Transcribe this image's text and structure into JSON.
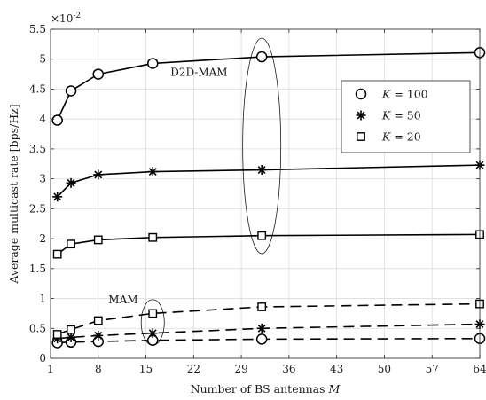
{
  "chart_data": {
    "type": "line",
    "title": "",
    "xlabel": "Number of BS antennas",
    "xlabel_symbol": "M",
    "ylabel": "Average multicast rate [bps/Hz]",
    "y_multiplier": "×10",
    "y_multiplier_exponent": "-2",
    "xlim": [
      1,
      64
    ],
    "ylim": [
      0,
      5.5
    ],
    "x_ticks": [
      1,
      8,
      15,
      22,
      29,
      36,
      43,
      50,
      57,
      64
    ],
    "y_ticks": [
      0,
      0.5,
      1,
      1.5,
      2,
      2.5,
      3,
      3.5,
      4,
      4.5,
      5,
      5.5
    ],
    "y_tick_labels": [
      "0",
      "0.5",
      "1",
      "1.5",
      "2",
      "2.5",
      "3",
      "3.5",
      "4",
      "4.5",
      "5",
      "5.5"
    ],
    "grid": true,
    "legend_position": "top-right",
    "x": [
      2,
      4,
      8,
      16,
      32,
      64
    ],
    "series": [
      {
        "name": "K = 100",
        "group": "D2D-MAM",
        "marker": "circle",
        "line": "solid",
        "values": [
          3.98,
          4.47,
          4.75,
          4.93,
          5.04,
          5.11
        ]
      },
      {
        "name": "K = 50",
        "group": "D2D-MAM",
        "marker": "asterisk",
        "line": "solid",
        "values": [
          2.7,
          2.93,
          3.07,
          3.12,
          3.15,
          3.23
        ]
      },
      {
        "name": "K = 20",
        "group": "D2D-MAM",
        "marker": "square",
        "line": "solid",
        "values": [
          1.74,
          1.91,
          1.98,
          2.02,
          2.05,
          2.07
        ]
      },
      {
        "name": "K = 100",
        "group": "MAM",
        "marker": "circle",
        "line": "dashed",
        "values": [
          0.26,
          0.27,
          0.28,
          0.3,
          0.32,
          0.33
        ]
      },
      {
        "name": "K = 50",
        "group": "MAM",
        "marker": "asterisk",
        "line": "dashed",
        "values": [
          0.33,
          0.35,
          0.38,
          0.42,
          0.5,
          0.57
        ]
      },
      {
        "name": "K = 20",
        "group": "MAM",
        "marker": "square",
        "line": "dashed",
        "values": [
          0.4,
          0.48,
          0.63,
          0.75,
          0.86,
          0.91
        ]
      }
    ],
    "legend": [
      {
        "marker": "circle",
        "label_symbol": "K",
        "label_value": "= 100"
      },
      {
        "marker": "asterisk",
        "label_symbol": "K",
        "label_value": "= 50"
      },
      {
        "marker": "square",
        "label_symbol": "K",
        "label_value": "= 20"
      }
    ],
    "annotations": [
      {
        "text": "D2D-MAM",
        "x": 18.6,
        "y": 4.72
      },
      {
        "text": "MAM",
        "x": 9.5,
        "y": 0.92
      }
    ],
    "ellipses": [
      {
        "cx": 32,
        "cy": 3.55,
        "rx": 2.8,
        "ry": 1.8
      },
      {
        "cx": 16,
        "cy": 0.6,
        "rx": 1.7,
        "ry": 0.38
      }
    ]
  }
}
